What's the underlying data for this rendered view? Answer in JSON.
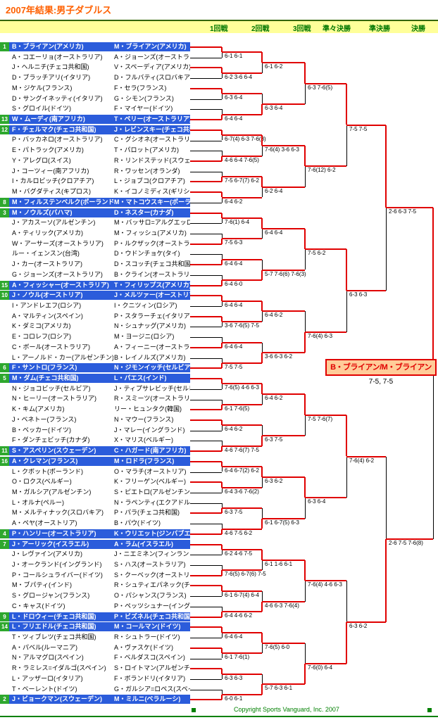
{
  "title": "2007年結果:男子ダブルス",
  "rounds_header": [
    "1回戦",
    "2回戦",
    "3回戦",
    "準々決勝",
    "準決勝",
    "決勝"
  ],
  "teams": [
    {
      "seed": "1",
      "p1": "B・ブライアン(アメリカ)",
      "p2": "M・ブライアン(アメリカ)"
    },
    {
      "p1": "A・コエーリョ(オーストラリア)",
      "p2": "A・ジョーンズ(オーストラリア)"
    },
    {
      "p1": "J・ヘルニチ(チェコ共和国)",
      "p2": "V・スペーディア(アメリカ)"
    },
    {
      "p1": "D・ブラッチアリ(イタリア)",
      "p2": "D・フルバティ(スロバキア)"
    },
    {
      "p1": "M・ジケル(フランス)",
      "p2": "F・セラ(フランス)"
    },
    {
      "p1": "D・サングイネッティ(イタリア)",
      "p2": "G・シモン(フランス)"
    },
    {
      "p1": "S・グロイル(ドイツ)",
      "p2": "F・マイヤー(ドイツ)"
    },
    {
      "seed": "13",
      "p1": "W・ムーディ(南アフリカ)",
      "p2": "T・ペリー(オーストラリア)"
    },
    {
      "seed": "12",
      "p1": "F・チェルマク(チェコ共和国)",
      "p2": "J・レビンスキー(チェコ共和国)"
    },
    {
      "p1": "P・バッカネロ(オーストラリア)",
      "p2": "C・グシオネ(オーストラリア)"
    },
    {
      "p1": "E・パトラック(アメリカ)",
      "p2": "T・パロット(アメリカ)"
    },
    {
      "p1": "Y・アレグロ(スイス)",
      "p2": "R・リンドステッド(スウェーデン)"
    },
    {
      "p1": "J・コーツィー(南アフリカ)",
      "p2": "R・ワッセン(オランダ)"
    },
    {
      "p1": "I・カルロビッチ(クロアチア)",
      "p2": "L・ジョブコ(クロアチア)"
    },
    {
      "p1": "M・バグダティス(キプロス)",
      "p2": "K・イコノミディス(ギリシア)"
    },
    {
      "seed": "8",
      "p1": "M・フィルステンベルク(ポーランド)",
      "p2": "M・マトコウスキー(ポーランド)"
    },
    {
      "seed": "3",
      "p1": "M・ノウルズ(バハマ)",
      "p2": "D・ネスター(カナダ)"
    },
    {
      "p1": "J・アカスーソ(アルゼンチン)",
      "p2": "M・バッサロ=アルグエッロ(アルゼンチン)"
    },
    {
      "p1": "A・ティリック(アメリカ)",
      "p2": "M・フィッシュ(アメリカ)"
    },
    {
      "p1": "W・アーサーズ(オーストラリア)",
      "p2": "P・ルクザック(オーストラリア)"
    },
    {
      "p1": "ルー・イェンスン(台湾)",
      "p2": "D・ウドンチョケ(タイ)"
    },
    {
      "p1": "J・カー(オーストラリア)",
      "p2": "D・スコッチ(チェコ共和国)"
    },
    {
      "p1": "G・ジョーンズ(オーストラリア)",
      "p2": "B・クライン(オーストラリア)"
    },
    {
      "seed": "15",
      "p1": "A・フィッシャー(オーストラリア)",
      "p2": "T・フィリップス(アメリカ)"
    },
    {
      "seed": "10",
      "p1": "J・ノウル(オーストリア)",
      "p2": "J・メルツァー(オーストリア)"
    },
    {
      "p1": "I・アンドレエフ(ロシア)",
      "p2": "I・クニツィン(ロシア)"
    },
    {
      "p1": "A・マルティン(スペイン)",
      "p2": "P・スタラーチェ(イタリア)"
    },
    {
      "p1": "K・ダミコ(アメリカ)",
      "p2": "N・シュナッグ(アメリカ)"
    },
    {
      "p1": "E・コロレフ(ロシア)",
      "p2": "M・ヨージニ(ロシア)"
    },
    {
      "p1": "C・ボール(オーストラリア)",
      "p2": "A・フィーニー(オーストラリア)"
    },
    {
      "p1": "L・アーノルド・カー(アルゼンチン)",
      "p2": "B・レイノルズ(アメリカ)"
    },
    {
      "seed": "6",
      "p1": "F・サントロ(フランス)",
      "p2": "N・ジモンイッチ(セルビア)"
    },
    {
      "seed": "5",
      "p1": "M・ダム(チェコ共和国)",
      "p2": "L・パエス(インド)"
    },
    {
      "p1": "N・ジョコビッチ(セルビア)",
      "p2": "J・ティプサレビッチ(セルビア)"
    },
    {
      "p1": "N・ヒーリー(オーストラリア)",
      "p2": "R・スミーツ(オーストラリア)"
    },
    {
      "p1": "K・キム(アメリカ)",
      "p2": "リー・ヒュンタク(韓国)"
    },
    {
      "p1": "J・ベネトー(フランス)",
      "p2": "N・マウー(フランス)"
    },
    {
      "p1": "B・ベッカー(ドイツ)",
      "p2": "J・マレー(イングランド)"
    },
    {
      "p1": "F・ダンチェビッチ(カナダ)",
      "p2": "X・マリス(ベルギー)"
    },
    {
      "seed": "11",
      "p1": "S・アスペリン(スウェーデン)",
      "p2": "C・ハガード(南アフリカ)"
    },
    {
      "seed": "16",
      "p1": "A・クレマン(フランス)",
      "p2": "M・ロドラ(フランス)"
    },
    {
      "p1": "L・クボット(ポーランド)",
      "p2": "O・マラチ(オーストリア)"
    },
    {
      "p1": "O・ロクス(ベルギー)",
      "p2": "K・フリーゲン(ベルギー)"
    },
    {
      "p1": "M・ガルシア(アルゼンチン)",
      "p2": "S・ピエトロ(アルゼンチン)"
    },
    {
      "p1": "L・オルナ(ペルー)",
      "p2": "N・ラペンティ(エクアドル)"
    },
    {
      "p1": "M・メルティナック(スロバキア)",
      "p2": "P・パラ(チェコ共和国)"
    },
    {
      "p1": "A・ペヤ(オーストリア)",
      "p2": "B・パウ(ドイツ)"
    },
    {
      "seed": "4",
      "p1": "P・ハンリー(オーストラリア)",
      "p2": "K・ウリエット(ジンバブエ)"
    },
    {
      "seed": "7",
      "p1": "J・アーリック(イスラエル)",
      "p2": "A・ラム(イスラエル)"
    },
    {
      "p1": "J・レヴァイン(アメリカ)",
      "p2": "J・ニエミネン(フィンランド)"
    },
    {
      "p1": "J・オークランド(イングランド)",
      "p2": "S・ハス(オーストラリア)"
    },
    {
      "p1": "P・コールシュライバー(ドイツ)",
      "p2": "S・クーベック(オーストリア)"
    },
    {
      "p1": "M・ブパティ(インド)",
      "p2": "R・シュティエパネック(チェコ共和国)"
    },
    {
      "p1": "S・グロージャン(フランス)",
      "p2": "O・パシャンス(フランス)"
    },
    {
      "p1": "C・キャス(ドイツ)",
      "p2": "P・ペッツシュナー(イングランド)"
    },
    {
      "seed": "9",
      "p1": "L・ドロウィー(チェコ共和国)",
      "p2": "P・ビズネル(チェコ共和国)"
    },
    {
      "seed": "14",
      "p1": "L・フリエドル(チェコ共和国)",
      "p2": "M・コールマン(ドイツ)"
    },
    {
      "p1": "T・ツィブレツ(チェコ共和国)",
      "p2": "R・シュトラー(ドイツ)"
    },
    {
      "p1": "A・パベル(ルーマニア)",
      "p2": "A・ヴァスケ(ドイツ)"
    },
    {
      "p1": "N・アルマグロ(スペイン)",
      "p2": "F・ベルダスコ(スペイン)"
    },
    {
      "p1": "R・ラミレス=イダルゴ(スペイン)",
      "p2": "S・ロイトマン(アルゼンチン)"
    },
    {
      "p1": "L・アッザーロ(イタリア)",
      "p2": "F・ボランドリ(イタリア)"
    },
    {
      "p1": "T・ベーレント(ドイツ)",
      "p2": "G・ガルシア=ロペス(スペイン)"
    },
    {
      "seed": "2",
      "p1": "J・ビョークマン(スウェーデン)",
      "p2": "M・ミルニ(ベラルーシ)"
    }
  ],
  "rounds": [
    {
      "name": "1回戦",
      "matches": [
        {
          "score": "6-1 6-1",
          "winner": "t"
        },
        {
          "score": "6-2 3-6 6-4",
          "winner": "t"
        },
        {
          "score": "6-3 6-4",
          "winner": "t"
        },
        {
          "score": "6-4 6-4",
          "winner": "b"
        },
        {
          "score": "6-7(4) 6-3 7-6(8)",
          "winner": "t"
        },
        {
          "score": "4-6 6-4 7-6(5)",
          "winner": "b"
        },
        {
          "score": "7-5 6-7(7) 6-2",
          "winner": "b"
        },
        {
          "score": "6-4 6-2",
          "winner": "t"
        },
        {
          "score": "7-6(1) 6-4",
          "winner": "t"
        },
        {
          "score": "7-5 6-3",
          "winner": "b"
        },
        {
          "score": "6-4 6-4",
          "winner": "b"
        },
        {
          "score": "6-4 6-0",
          "winner": "b"
        },
        {
          "score": "6-4 6-4",
          "winner": "t"
        },
        {
          "score": "3-6 7-6(5) 7-5",
          "winner": "t"
        },
        {
          "score": "6-4 6-4",
          "winner": "b"
        },
        {
          "score": "7-5 7-5",
          "winner": "b"
        },
        {
          "score": "7-6(5) 4-6 6-3",
          "winner": "t"
        },
        {
          "score": "6-1 7-6(5)",
          "winner": "b"
        },
        {
          "score": "6-4 6-2",
          "winner": "t"
        },
        {
          "score": "4-6 7-6(7) 7-5",
          "winner": "b"
        },
        {
          "score": "6-4 6-7(2) 6-2",
          "winner": "t"
        },
        {
          "score": "6-4 3-6 7-6(2)",
          "winner": "t"
        },
        {
          "score": "6-3 7-5",
          "winner": "b"
        },
        {
          "score": "4-6 7-5 6-2",
          "winner": "b"
        },
        {
          "score": "6-2 4-6 7-5",
          "winner": "t"
        },
        {
          "score": "7-6(5) 6-7(6) 7-5",
          "winner": "b"
        },
        {
          "score": "6-1 6-7(4) 6-4",
          "winner": "t"
        },
        {
          "score": "6-4 4-6 6-2",
          "winner": "b"
        },
        {
          "score": "6-4 6-4",
          "winner": "t"
        },
        {
          "score": "6-1 7-6(1)",
          "winner": "t"
        },
        {
          "score": "6-3 6-3",
          "winner": "t"
        },
        {
          "score": "6-0 6-1",
          "winner": "b"
        }
      ]
    },
    {
      "name": "2回戦",
      "matches": [
        {
          "score": "6-1 6-2",
          "winner": "t"
        },
        {
          "score": "6-3 6-4",
          "winner": "b"
        },
        {
          "score": "7-6(4) 3-6 6-3",
          "winner": "t"
        },
        {
          "score": "6-2 6-4",
          "winner": "t"
        },
        {
          "score": "6-4 6-4",
          "winner": "t"
        },
        {
          "score": "5-7 7-6(6) 7-6(3)",
          "winner": "b"
        },
        {
          "score": "6-4 6-2",
          "winner": "t"
        },
        {
          "score": "3-6 6-3 6-2",
          "winner": "b"
        },
        {
          "score": "6-4 6-2",
          "winner": "t"
        },
        {
          "score": "6-3 7-5",
          "winner": "b"
        },
        {
          "score": "6-3 6-2",
          "winner": "t"
        },
        {
          "score": "6-1 6-7(5) 6-3",
          "winner": "b"
        },
        {
          "score": "6-1 1-6 6-1",
          "winner": "t"
        },
        {
          "score": "4-6 6-3 7-6(4)",
          "winner": "b"
        },
        {
          "score": "7-6(5) 6-0",
          "winner": "t"
        },
        {
          "score": "5-7 6-3 6-1",
          "winner": "b"
        }
      ]
    },
    {
      "name": "3回戦",
      "matches": [
        {
          "score": "6-3 7-6(5)",
          "winner": "t"
        },
        {
          "score": "7-6(12) 6-2",
          "winner": "t"
        },
        {
          "score": "7-5 6-2",
          "winner": "t"
        },
        {
          "score": "7-6(4) 6-3",
          "winner": "b"
        },
        {
          "score": "7-5 7-6(7)",
          "winner": "t"
        },
        {
          "score": "6-3 6-4",
          "winner": "t"
        },
        {
          "score": "7-6(4) 4-6 6-3",
          "winner": "t"
        },
        {
          "score": "7-6(0) 6-4",
          "winner": "b"
        }
      ]
    },
    {
      "name": "準々決勝",
      "matches": [
        {
          "score": "7-5 7-5",
          "winner": "t"
        },
        {
          "score": "6-3 6-3",
          "winner": "t"
        },
        {
          "score": "7-6(4) 6-2",
          "winner": "t"
        },
        {
          "score": "6-3 6-2",
          "winner": "b"
        }
      ]
    },
    {
      "name": "準決勝",
      "matches": [
        {
          "score": "2-6 6-3 7-5",
          "winner": "t"
        },
        {
          "score": "2-6 7-5 7-6(8)",
          "winner": "b"
        }
      ]
    }
  ],
  "champion": {
    "label": "B・ブライアン/M・ブライアン",
    "score": "7-5, 7-5",
    "winner": "t"
  },
  "footer": {
    "copyright": "Copyright  Sports Vanguard, Inc. 2007"
  },
  "colors": {
    "accent_red": "#e00000",
    "seed_bar_blue": "#2b5cdb",
    "seed_box_green": "#2ea82e",
    "header_yellow": "#ffff99",
    "header_green": "#007700",
    "title_orange": "#ff6000",
    "champion_box_bg": "#ffcc99"
  }
}
